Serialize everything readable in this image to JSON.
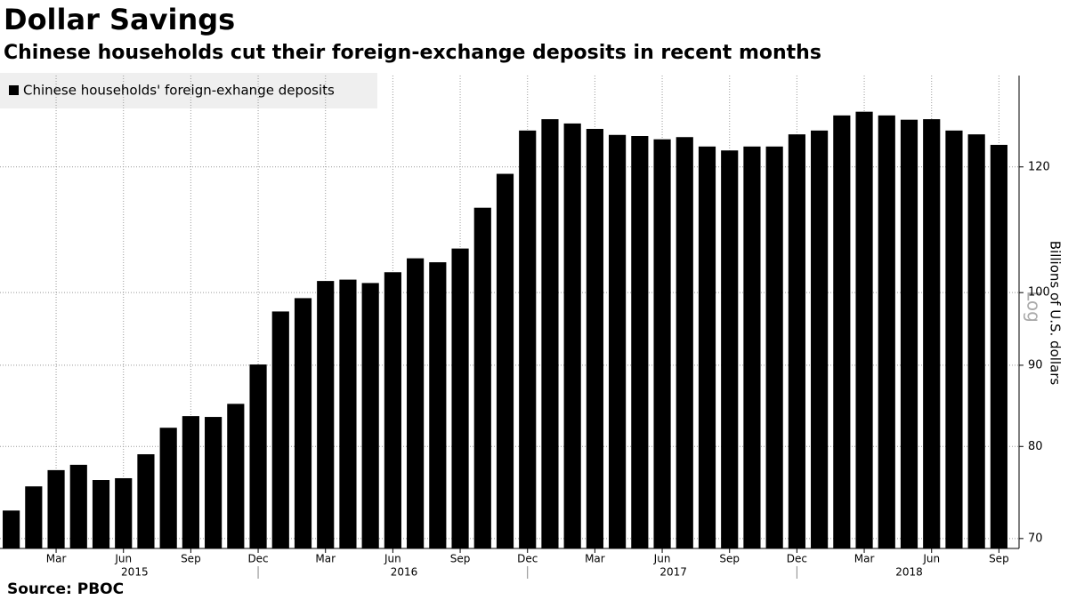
{
  "chart_data": {
    "type": "bar",
    "title": "Dollar Savings",
    "subtitle": "Chinese households cut their foreign-exchange deposits in recent months",
    "source": "Source: PBOC",
    "y_label": "Billions of U.S. dollars",
    "scale_note": "Log",
    "log_scale": true,
    "grid": true,
    "categories": [
      null,
      null,
      "Mar",
      null,
      null,
      "Jun",
      null,
      null,
      "Sep",
      null,
      null,
      "Dec",
      null,
      null,
      "Mar",
      null,
      null,
      "Jun",
      null,
      null,
      "Sep",
      null,
      null,
      "Dec",
      null,
      null,
      "Mar",
      null,
      null,
      "Jun",
      null,
      null,
      "Sep",
      null,
      null,
      "Dec",
      null,
      null,
      "Mar",
      null,
      null,
      "Jun",
      null,
      null,
      "Sep"
    ],
    "years": [
      "2015",
      "2016",
      "2017",
      "2018"
    ],
    "series": [
      {
        "name": "Chinese households' foreign-exhange deposits",
        "color": "#000000",
        "values": [
          72.9,
          75.5,
          77.3,
          77.9,
          76.2,
          76.4,
          79.1,
          82.2,
          83.6,
          83.5,
          85.1,
          90.1,
          97.3,
          99.2,
          101.7,
          101.9,
          101.4,
          103.0,
          105.1,
          104.5,
          106.6,
          113.1,
          118.8,
          126.5,
          128.6,
          127.8,
          126.8,
          125.7,
          125.5,
          124.9,
          125.3,
          123.6,
          122.9,
          123.6,
          123.6,
          125.8,
          126.5,
          129.3,
          130.0,
          129.3,
          128.5,
          128.6,
          126.5,
          125.8,
          123.9
        ]
      }
    ],
    "ylim": [
      69,
      137
    ],
    "yticks": [
      70,
      80,
      90,
      100,
      120
    ]
  }
}
